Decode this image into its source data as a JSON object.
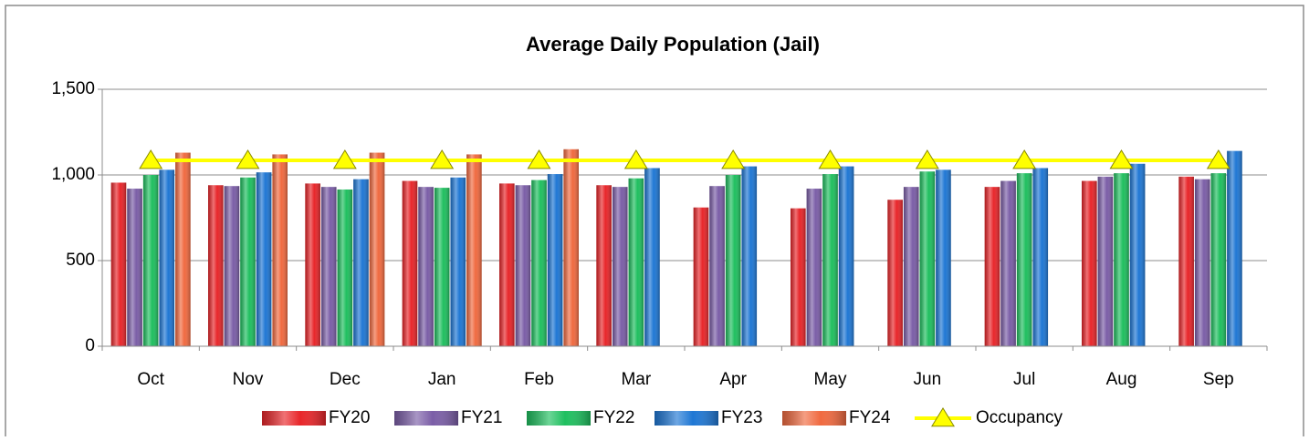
{
  "chart_data": {
    "type": "bar",
    "title": "Average Daily Population (Jail)",
    "categories": [
      "Oct",
      "Nov",
      "Dec",
      "Jan",
      "Feb",
      "Mar",
      "Apr",
      "May",
      "Jun",
      "Jul",
      "Aug",
      "Sep"
    ],
    "series": [
      {
        "name": "FY20",
        "color": "#e8262a",
        "values": [
          955,
          940,
          950,
          965,
          950,
          940,
          810,
          805,
          855,
          930,
          965,
          990
        ]
      },
      {
        "name": "FY21",
        "color": "#7b5ea7",
        "values": [
          920,
          935,
          930,
          930,
          940,
          930,
          935,
          920,
          930,
          965,
          990,
          975
        ]
      },
      {
        "name": "FY22",
        "color": "#1fbf5f",
        "values": [
          1000,
          985,
          915,
          925,
          970,
          980,
          1000,
          1005,
          1020,
          1010,
          1010,
          1010
        ]
      },
      {
        "name": "FY23",
        "color": "#1f77d4",
        "values": [
          1030,
          1015,
          975,
          985,
          1005,
          1040,
          1050,
          1050,
          1030,
          1040,
          1065,
          1140
        ]
      },
      {
        "name": "FY24",
        "color": "#f06a40",
        "values": [
          1130,
          1120,
          1130,
          1120,
          1150,
          null,
          null,
          null,
          null,
          null,
          null,
          null
        ]
      },
      {
        "name": "Occupancy",
        "type": "line",
        "color": "#ffff00",
        "values": [
          1085,
          1085,
          1085,
          1085,
          1085,
          1085,
          1085,
          1085,
          1085,
          1085,
          1085,
          1085
        ]
      }
    ],
    "ylim": [
      0,
      1500
    ],
    "yticks": [
      0,
      500,
      {
        "value": 1000,
        "label": "1,000"
      },
      {
        "value": 1500,
        "label": "1,500"
      }
    ],
    "grid": true,
    "legend": "bottom"
  }
}
